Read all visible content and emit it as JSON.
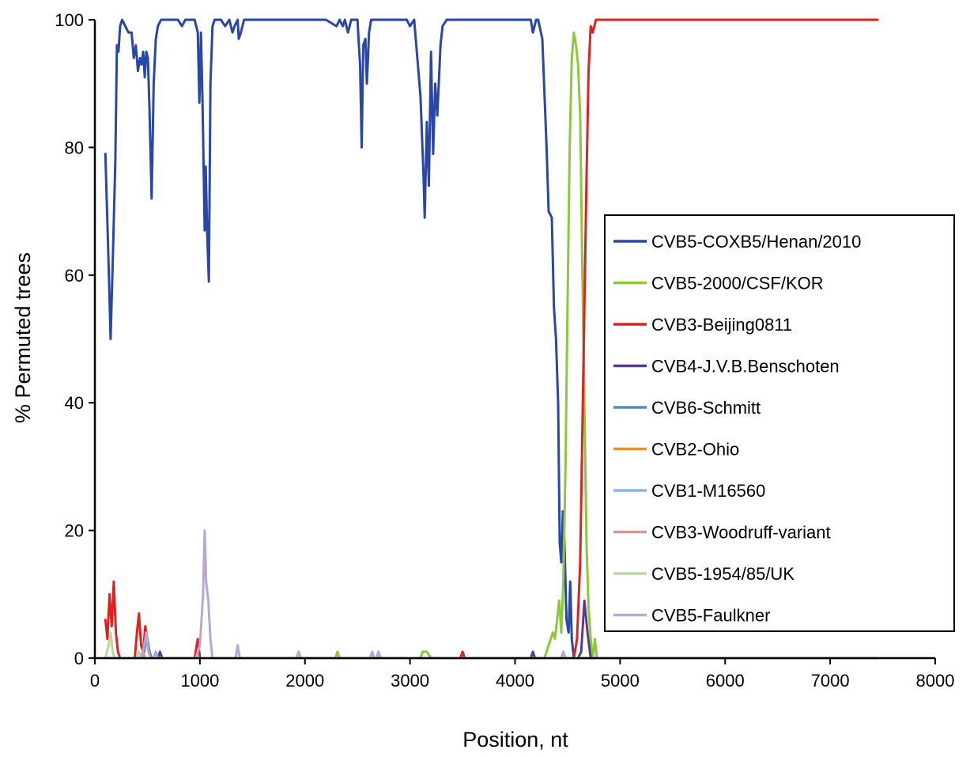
{
  "chart_data": {
    "type": "line",
    "title": "",
    "xlabel": "Position, nt",
    "ylabel": "% Permuted trees",
    "xlim": [
      0,
      8000
    ],
    "ylim": [
      0,
      100
    ],
    "x_ticks": [
      "0",
      "1000",
      "2000",
      "3000",
      "4000",
      "5000",
      "6000",
      "7000",
      "8000"
    ],
    "y_ticks": [
      "0",
      "20",
      "40",
      "60",
      "80",
      "100"
    ],
    "grid": false,
    "legend_position": "right",
    "series": [
      {
        "name": "CVB5-COXB5/Henan/2010",
        "color": "#2a46a6",
        "points": [
          [
            100,
            79
          ],
          [
            130,
            62
          ],
          [
            150,
            50
          ],
          [
            170,
            62
          ],
          [
            195,
            78
          ],
          [
            210,
            96
          ],
          [
            225,
            95
          ],
          [
            240,
            99
          ],
          [
            260,
            100
          ],
          [
            290,
            99
          ],
          [
            320,
            98
          ],
          [
            350,
            98
          ],
          [
            370,
            94
          ],
          [
            390,
            96
          ],
          [
            410,
            92
          ],
          [
            430,
            94
          ],
          [
            445,
            93
          ],
          [
            460,
            95
          ],
          [
            475,
            91
          ],
          [
            490,
            95
          ],
          [
            505,
            94
          ],
          [
            520,
            86
          ],
          [
            540,
            72
          ],
          [
            560,
            90
          ],
          [
            580,
            97
          ],
          [
            600,
            99
          ],
          [
            630,
            100
          ],
          [
            700,
            100
          ],
          [
            790,
            100
          ],
          [
            830,
            99
          ],
          [
            860,
            100
          ],
          [
            950,
            100
          ],
          [
            980,
            98
          ],
          [
            995,
            87
          ],
          [
            1010,
            98
          ],
          [
            1025,
            87
          ],
          [
            1045,
            67
          ],
          [
            1055,
            77
          ],
          [
            1070,
            66
          ],
          [
            1085,
            59
          ],
          [
            1100,
            90
          ],
          [
            1120,
            99
          ],
          [
            1140,
            100
          ],
          [
            1200,
            100
          ],
          [
            1240,
            99
          ],
          [
            1280,
            100
          ],
          [
            1310,
            98
          ],
          [
            1330,
            99
          ],
          [
            1360,
            100
          ],
          [
            1370,
            97
          ],
          [
            1390,
            98
          ],
          [
            1420,
            100
          ],
          [
            1500,
            100
          ],
          [
            1600,
            100
          ],
          [
            1700,
            100
          ],
          [
            1800,
            100
          ],
          [
            1900,
            100
          ],
          [
            2000,
            100
          ],
          [
            2100,
            100
          ],
          [
            2200,
            100
          ],
          [
            2300,
            99
          ],
          [
            2330,
            100
          ],
          [
            2360,
            99
          ],
          [
            2380,
            100
          ],
          [
            2410,
            98
          ],
          [
            2440,
            100
          ],
          [
            2500,
            100
          ],
          [
            2510,
            97
          ],
          [
            2525,
            93
          ],
          [
            2540,
            80
          ],
          [
            2555,
            96
          ],
          [
            2575,
            97
          ],
          [
            2590,
            90
          ],
          [
            2610,
            98
          ],
          [
            2630,
            100
          ],
          [
            2700,
            100
          ],
          [
            2800,
            100
          ],
          [
            2900,
            100
          ],
          [
            2970,
            100
          ],
          [
            3000,
            99
          ],
          [
            3040,
            100
          ],
          [
            3100,
            88
          ],
          [
            3130,
            75
          ],
          [
            3140,
            69
          ],
          [
            3160,
            84
          ],
          [
            3180,
            74
          ],
          [
            3200,
            95
          ],
          [
            3220,
            79
          ],
          [
            3240,
            90
          ],
          [
            3260,
            85
          ],
          [
            3290,
            96
          ],
          [
            3310,
            99
          ],
          [
            3350,
            100
          ],
          [
            3500,
            100
          ],
          [
            3700,
            100
          ],
          [
            3900,
            100
          ],
          [
            4100,
            100
          ],
          [
            4150,
            100
          ],
          [
            4170,
            98
          ],
          [
            4200,
            100
          ],
          [
            4220,
            100
          ],
          [
            4260,
            97
          ],
          [
            4300,
            80
          ],
          [
            4320,
            70
          ],
          [
            4350,
            69
          ],
          [
            4370,
            55
          ],
          [
            4390,
            50
          ],
          [
            4410,
            40
          ],
          [
            4425,
            18
          ],
          [
            4440,
            15
          ],
          [
            4455,
            23
          ],
          [
            4470,
            18
          ],
          [
            4490,
            6
          ],
          [
            4510,
            4
          ],
          [
            4525,
            12
          ],
          [
            4540,
            3
          ],
          [
            4560,
            0
          ],
          [
            4600,
            0
          ],
          [
            5000,
            0
          ],
          [
            6000,
            0
          ],
          [
            7000,
            0
          ],
          [
            7450,
            0
          ]
        ]
      },
      {
        "name": "CVB5-2000/CSF/KOR",
        "color": "#8cc83c",
        "points": [
          [
            100,
            0
          ],
          [
            2290,
            0
          ],
          [
            2310,
            1
          ],
          [
            2330,
            0
          ],
          [
            3100,
            0
          ],
          [
            3120,
            1
          ],
          [
            3160,
            1
          ],
          [
            3200,
            0
          ],
          [
            4280,
            0
          ],
          [
            4320,
            2
          ],
          [
            4360,
            4
          ],
          [
            4380,
            3
          ],
          [
            4400,
            6
          ],
          [
            4420,
            9
          ],
          [
            4440,
            4
          ],
          [
            4460,
            12
          ],
          [
            4480,
            30
          ],
          [
            4500,
            55
          ],
          [
            4520,
            80
          ],
          [
            4540,
            94
          ],
          [
            4560,
            98
          ],
          [
            4580,
            96
          ],
          [
            4600,
            93
          ],
          [
            4620,
            85
          ],
          [
            4640,
            62
          ],
          [
            4660,
            40
          ],
          [
            4680,
            18
          ],
          [
            4700,
            8
          ],
          [
            4720,
            3
          ],
          [
            4740,
            0
          ],
          [
            4760,
            3
          ],
          [
            4780,
            0
          ],
          [
            5000,
            0
          ],
          [
            7450,
            0
          ]
        ]
      },
      {
        "name": "CVB3-Beijing0811",
        "color": "#dd2222",
        "points": [
          [
            100,
            6
          ],
          [
            120,
            3
          ],
          [
            140,
            10
          ],
          [
            160,
            5
          ],
          [
            180,
            12
          ],
          [
            200,
            4
          ],
          [
            220,
            1
          ],
          [
            240,
            0
          ],
          [
            380,
            0
          ],
          [
            400,
            4
          ],
          [
            420,
            7
          ],
          [
            440,
            2
          ],
          [
            460,
            1
          ],
          [
            480,
            5
          ],
          [
            500,
            3
          ],
          [
            520,
            1
          ],
          [
            540,
            0
          ],
          [
            950,
            0
          ],
          [
            980,
            3
          ],
          [
            1000,
            0
          ],
          [
            3480,
            0
          ],
          [
            3500,
            1
          ],
          [
            3520,
            0
          ],
          [
            4560,
            0
          ],
          [
            4590,
            3
          ],
          [
            4620,
            15
          ],
          [
            4650,
            45
          ],
          [
            4680,
            75
          ],
          [
            4700,
            92
          ],
          [
            4720,
            99
          ],
          [
            4740,
            98
          ],
          [
            4770,
            100
          ],
          [
            5000,
            100
          ],
          [
            6000,
            100
          ],
          [
            7000,
            100
          ],
          [
            7450,
            100
          ]
        ]
      },
      {
        "name": "CVB4-J.V.B.Benschoten",
        "color": "#5a3a8c",
        "points": [
          [
            100,
            0
          ],
          [
            600,
            0
          ],
          [
            620,
            1
          ],
          [
            640,
            0
          ],
          [
            4150,
            0
          ],
          [
            4170,
            1
          ],
          [
            4190,
            0
          ],
          [
            4600,
            0
          ],
          [
            4630,
            1
          ],
          [
            4660,
            9
          ],
          [
            4690,
            4
          ],
          [
            4720,
            0
          ],
          [
            7450,
            0
          ]
        ]
      },
      {
        "name": "CVB6-Schmitt",
        "color": "#4a90b8",
        "points": [
          [
            100,
            0
          ],
          [
            460,
            0
          ],
          [
            480,
            2
          ],
          [
            500,
            3
          ],
          [
            520,
            1
          ],
          [
            540,
            0
          ],
          [
            7450,
            0
          ]
        ]
      },
      {
        "name": "CVB2-Ohio",
        "color": "#e8912a",
        "points": [
          [
            100,
            0
          ],
          [
            7450,
            0
          ]
        ]
      },
      {
        "name": "CVB1-M16560",
        "color": "#8fb0e0",
        "points": [
          [
            100,
            0
          ],
          [
            560,
            0
          ],
          [
            580,
            1
          ],
          [
            600,
            0
          ],
          [
            7450,
            0
          ]
        ]
      },
      {
        "name": "CVB3-Woodruff-variant",
        "color": "#d49a9a",
        "points": [
          [
            100,
            0
          ],
          [
            440,
            0
          ],
          [
            460,
            1
          ],
          [
            480,
            0
          ],
          [
            7450,
            0
          ]
        ]
      },
      {
        "name": "CVB5-1954/85/UK",
        "color": "#b8d8a0",
        "points": [
          [
            100,
            0
          ],
          [
            130,
            2
          ],
          [
            150,
            4
          ],
          [
            170,
            1
          ],
          [
            190,
            0
          ],
          [
            400,
            0
          ],
          [
            420,
            1
          ],
          [
            440,
            0
          ],
          [
            7450,
            0
          ]
        ]
      },
      {
        "name": "CVB5-Faulkner",
        "color": "#b8a8d0",
        "points": [
          [
            100,
            0
          ],
          [
            440,
            0
          ],
          [
            470,
            2
          ],
          [
            490,
            4
          ],
          [
            510,
            1
          ],
          [
            530,
            0
          ],
          [
            960,
            0
          ],
          [
            1000,
            2
          ],
          [
            1030,
            10
          ],
          [
            1045,
            20
          ],
          [
            1060,
            12
          ],
          [
            1080,
            9
          ],
          [
            1100,
            3
          ],
          [
            1120,
            0
          ],
          [
            1340,
            0
          ],
          [
            1360,
            2
          ],
          [
            1380,
            0
          ],
          [
            1920,
            0
          ],
          [
            1940,
            1
          ],
          [
            1960,
            0
          ],
          [
            2620,
            0
          ],
          [
            2640,
            1
          ],
          [
            2660,
            0
          ],
          [
            2680,
            0
          ],
          [
            2700,
            1
          ],
          [
            2720,
            0
          ],
          [
            4440,
            0
          ],
          [
            4460,
            1
          ],
          [
            4480,
            0
          ],
          [
            7450,
            0
          ]
        ]
      }
    ]
  }
}
